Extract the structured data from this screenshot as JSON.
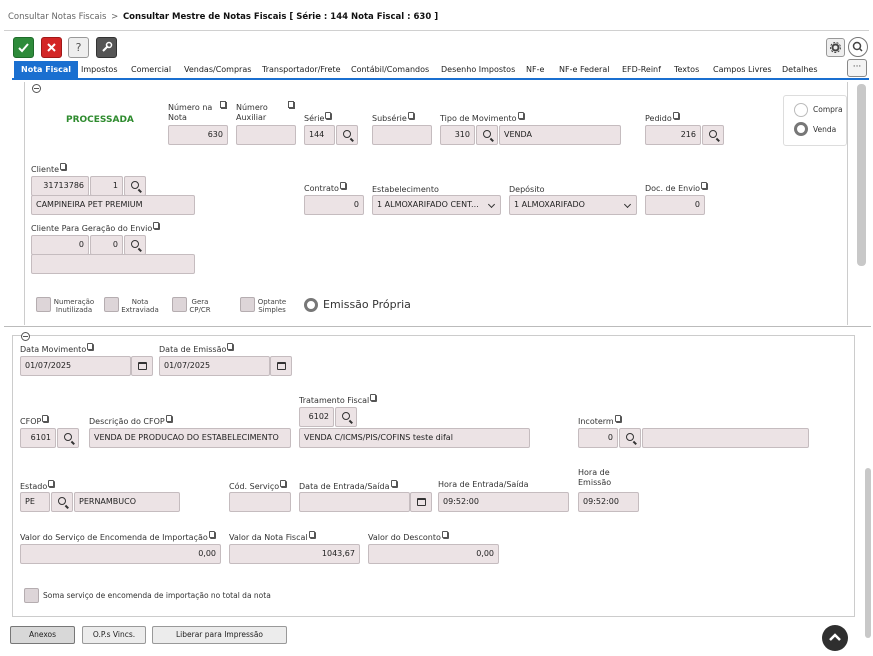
{
  "breadcrumb": {
    "parent": "Consultar Notas Fiscais",
    "separator": ">",
    "current": "Consultar Mestre de Notas Fiscais [ Série : 144 Nota Fiscal : 630 ]"
  },
  "toolbar": {
    "confirm_icon": "check-icon",
    "cancel_icon": "x-icon",
    "help_label": "?",
    "tools_icon": "wrench-icon"
  },
  "tabs": [
    "Nota Fiscal",
    "Impostos",
    "Comercial",
    "Vendas/Compras",
    "Transportador/Frete",
    "Contábil/Comandos",
    "Desenho Impostos",
    "NF-e",
    "NF-e Federal",
    "EFD-Reinf",
    "Textos",
    "Campos Livres",
    "Detalhes"
  ],
  "more_tabs_label": "···",
  "header": {
    "status": "PROCESSADA",
    "numero_nota": {
      "label": "Número na Nota",
      "value": "630"
    },
    "numero_auxiliar": {
      "label": "Número Auxiliar",
      "value": ""
    },
    "serie": {
      "label": "Série",
      "value": "144"
    },
    "subserie": {
      "label": "Subsérie",
      "value": ""
    },
    "tipo_movimento": {
      "label": "Tipo de Movimento",
      "code": "310",
      "desc": "VENDA"
    },
    "pedido": {
      "label": "Pedido",
      "value": "216"
    },
    "compra_label": "Compra",
    "venda_label": "Venda",
    "cliente": {
      "label": "Cliente",
      "code": "31713786",
      "seq": "1",
      "name": "CAMPINEIRA PET PREMIUM"
    },
    "contrato": {
      "label": "Contrato",
      "value": "0"
    },
    "estabelecimento": {
      "label": "Estabelecimento",
      "value": "1 ALMOXARIFADO CENT..."
    },
    "deposito": {
      "label": "Depósito",
      "value": "1 ALMOXARIFADO"
    },
    "doc_envio": {
      "label": "Doc. de Envio",
      "value": "0"
    },
    "cliente_envio": {
      "label": "Cliente Para Geração do Envio",
      "code": "0",
      "seq": "0",
      "name": ""
    },
    "checks": {
      "numeracao": "Numeração Inutilizada",
      "extraviada": "Nota Extraviada",
      "gera": "Gera CP/CR",
      "optante": "Optante Simples"
    },
    "emissao_propria": "Emissão Própria"
  },
  "details": {
    "data_movimento": {
      "label": "Data Movimento",
      "value": "01/07/2025"
    },
    "data_emissao": {
      "label": "Data de Emissão",
      "value": "01/07/2025"
    },
    "tratamento": {
      "label": "Tratamento Fiscal",
      "code": "6102",
      "desc": "VENDA C/ICMS/PIS/COFINS teste difal"
    },
    "cfop": {
      "label": "CFOP",
      "value": "6101"
    },
    "desc_cfop": {
      "label": "Descrição do CFOP",
      "value": "VENDA DE PRODUCAO DO ESTABELECIMENTO"
    },
    "incoterm": {
      "label": "Incoterm",
      "value": "0",
      "desc": ""
    },
    "estado": {
      "label": "Estado",
      "uf": "PE",
      "name": "PERNAMBUCO"
    },
    "cod_servico": {
      "label": "Cód. Serviço",
      "value": ""
    },
    "data_entrada": {
      "label": "Data de Entrada/Saída",
      "value": ""
    },
    "hora_entrada": {
      "label": "Hora de Entrada/Saída",
      "value": "09:52:00"
    },
    "hora_emissao": {
      "label": "Hora de Emissão",
      "value": "09:52:00"
    },
    "valor_servico": {
      "label": "Valor do Serviço de Encomenda de Importação",
      "value": "0,00"
    },
    "valor_nota": {
      "label": "Valor da Nota Fiscal",
      "value": "1043,67"
    },
    "valor_desconto": {
      "label": "Valor do Desconto",
      "value": "0,00"
    },
    "soma_servico": "Soma serviço de encomenda de importação no total da nota"
  },
  "footer": {
    "anexos": "Anexos",
    "ops": "O.P.s Vincs.",
    "liberar": "Liberar para Impressão"
  },
  "colors": {
    "tab_active": "#1a6fd0",
    "status_green": "#2e8b2e",
    "confirm_green": "#2e8b3a",
    "cancel_red": "#d32626"
  }
}
